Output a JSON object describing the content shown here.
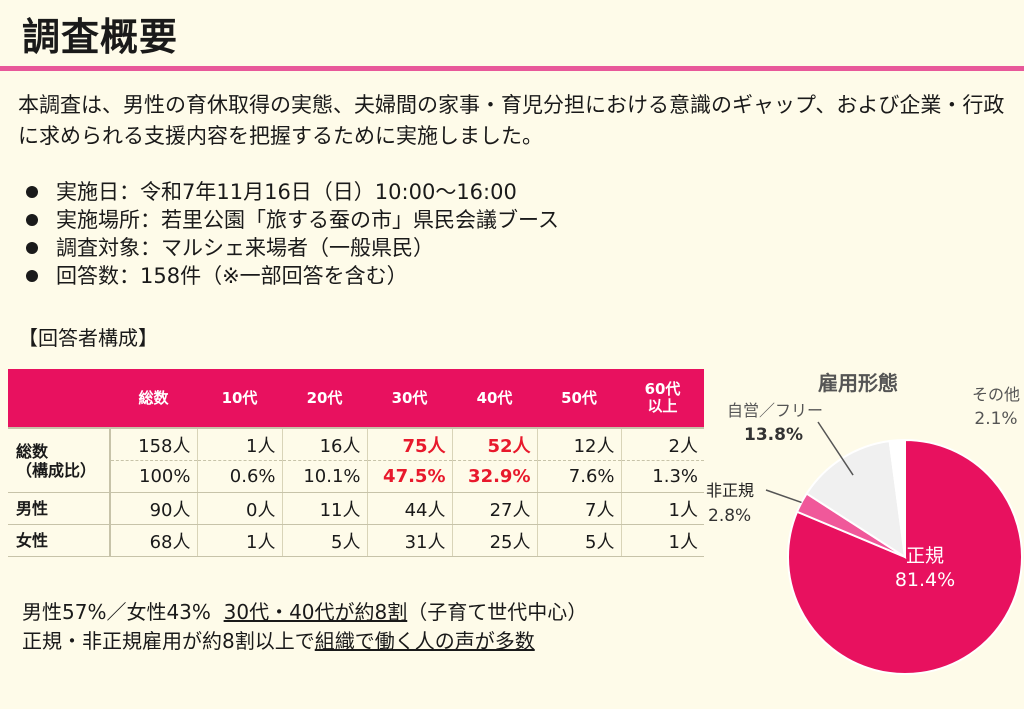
{
  "title": "調査概要",
  "intro": "本調査は、男性の育休取得の実態、夫婦間の家事・育児分担における意識のギャップ、および企業・行政に求められる支援内容を把握するために実施しました。",
  "bullets": [
    "実施日：令和7年11月16日（日）10:00～16:00",
    "実施場所：若里公園「旅する蚕の市」県民会議ブース",
    "調査対象：マルシェ来場者（一般県民）",
    "回答数：158件（※一部回答を含む）"
  ],
  "section_label": "【回答者構成】",
  "table": {
    "headers": [
      "総数",
      "10代",
      "20代",
      "30代",
      "40代",
      "50代",
      "60代\n以上"
    ],
    "total_label": "総数\n（構成比）",
    "total_counts": [
      "158人",
      "1人",
      "16人",
      "75人",
      "52人",
      "12人",
      "2人"
    ],
    "total_ratios": [
      "100%",
      "0.6%",
      "10.1%",
      "47.5%",
      "32.9%",
      "7.6%",
      "1.3%"
    ],
    "male_label": "男性",
    "male": [
      "90人",
      "0人",
      "11人",
      "44人",
      "27人",
      "7人",
      "1人"
    ],
    "female_label": "女性",
    "female": [
      "68人",
      "1人",
      "5人",
      "31人",
      "25人",
      "5人",
      "1人"
    ]
  },
  "summary": {
    "line1_a": "男性57%／女性43%",
    "line1_b": "30代・40代が約8割",
    "line1_c": "（子育て世代中心）",
    "line2_a": "正規・非正規雇用が約8割以上で",
    "line2_b": "組織で働く人の声が多数"
  },
  "chart_data": {
    "type": "pie",
    "title": "雇用形態",
    "slices": [
      {
        "label": "正規",
        "value": 81.4,
        "value_label": "81.4%",
        "color": "#e8115f"
      },
      {
        "label": "非正規",
        "value": 2.8,
        "value_label": "2.8%",
        "color": "#f0589a"
      },
      {
        "label": "自営／フリー",
        "value": 13.8,
        "value_label": "13.8%",
        "color": "#f0f0f0"
      },
      {
        "label": "その他",
        "value": 2.1,
        "value_label": "2.1%",
        "color": "#ffffff"
      }
    ]
  }
}
